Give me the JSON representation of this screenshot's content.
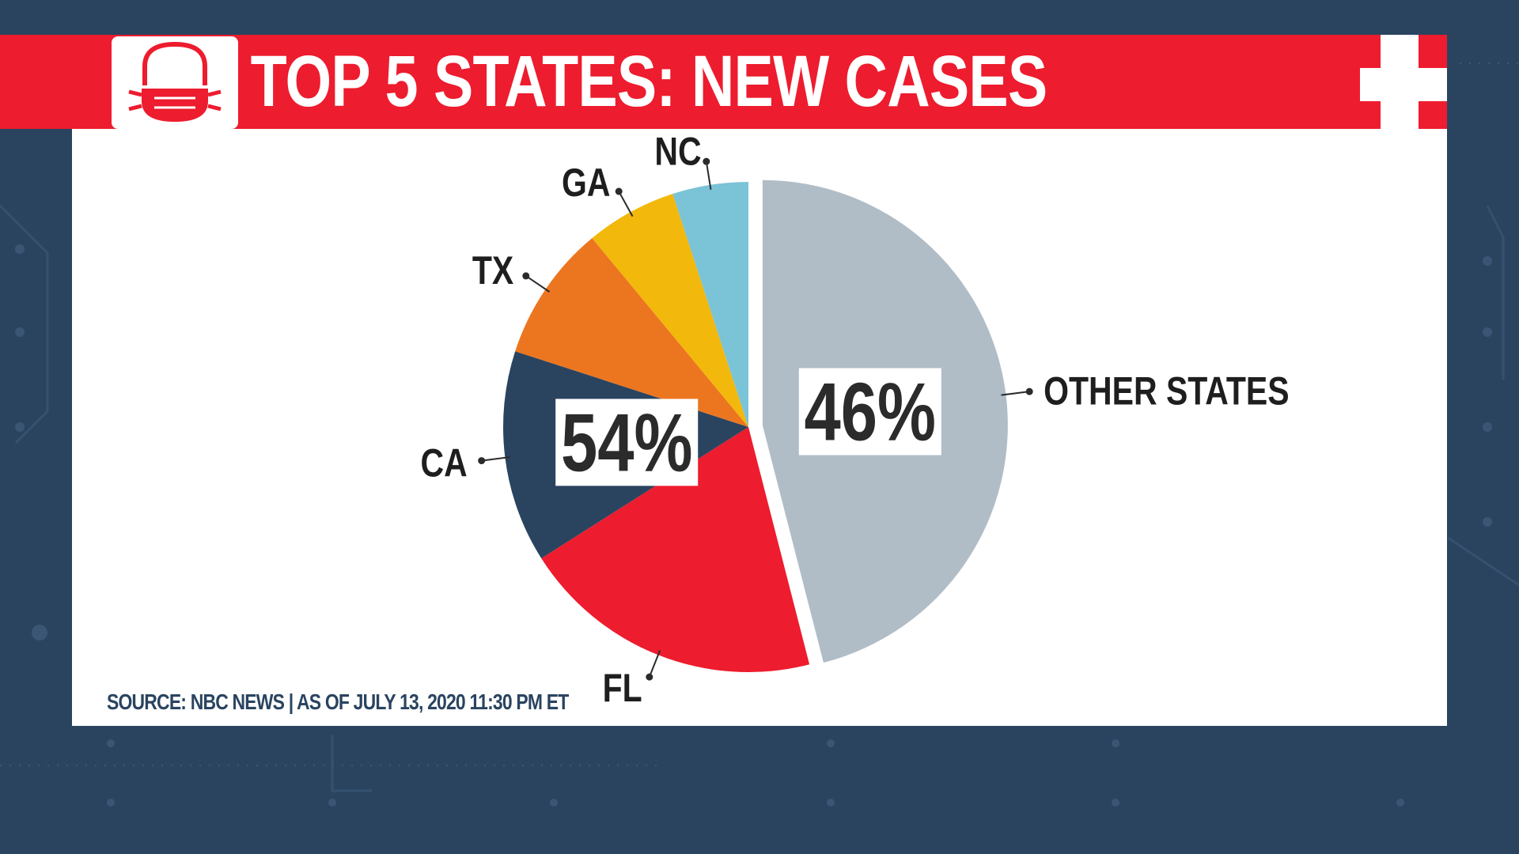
{
  "header": {
    "title": "TOP 5 STATES: NEW CASES",
    "logo_icon": "face-mask-icon",
    "corner_icon": "medical-cross-icon",
    "banner_color": "#ed1c2e"
  },
  "source_text": "SOURCE: NBC NEWS | AS OF JULY 13, 2020 11:30 PM ET",
  "chart_data": {
    "type": "pie",
    "title": "TOP 5 STATES: NEW CASES",
    "slices": [
      {
        "label": "OTHER STATES",
        "value": 46,
        "color": "#b0bdc7",
        "exploded": true
      },
      {
        "label": "FL",
        "value": 20,
        "color": "#ed1c2e"
      },
      {
        "label": "CA",
        "value": 14,
        "color": "#2a4460"
      },
      {
        "label": "TX",
        "value": 9,
        "color": "#ec761f"
      },
      {
        "label": "GA",
        "value": 6,
        "color": "#f3b80c"
      },
      {
        "label": "NC",
        "value": 5,
        "color": "#7bc3d6"
      }
    ],
    "group_labels": [
      {
        "text": "54%",
        "covers": [
          "FL",
          "CA",
          "TX",
          "GA",
          "NC"
        ]
      },
      {
        "text": "46%",
        "covers": [
          "OTHER STATES"
        ]
      }
    ]
  }
}
